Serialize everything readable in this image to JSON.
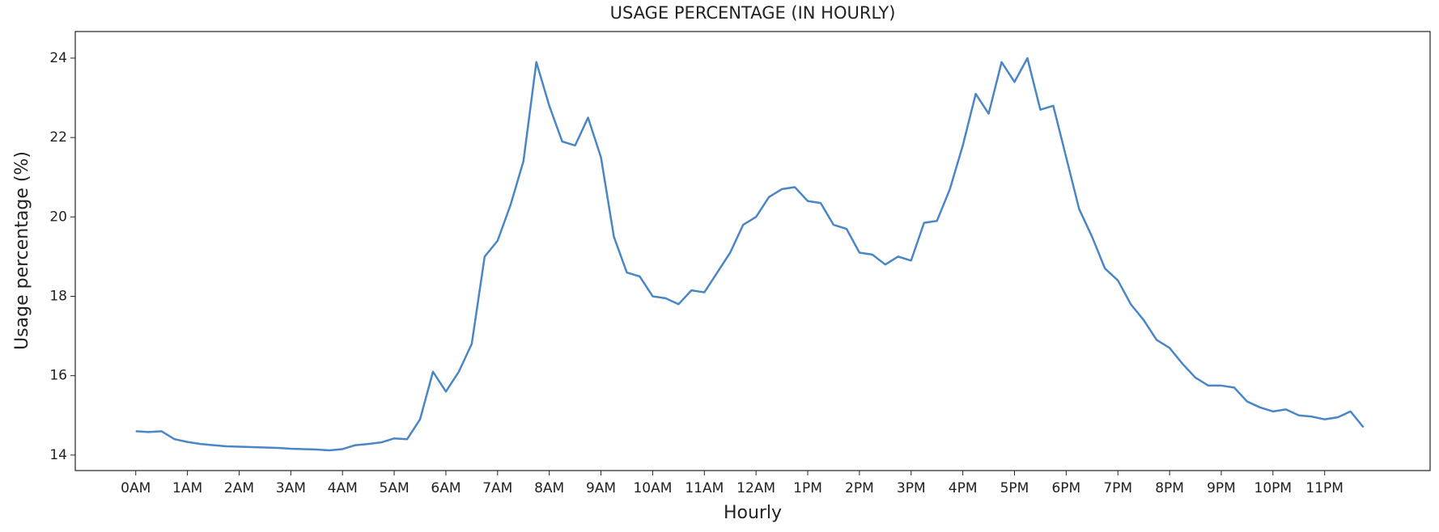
{
  "chart_data": {
    "type": "line",
    "title": "USAGE PERCENTAGE (IN HOURLY)",
    "x_label": "Hourly",
    "y_label": "Usage percentage (%)",
    "x": [
      0,
      0.25,
      0.5,
      0.75,
      1,
      1.25,
      1.5,
      1.75,
      2,
      2.25,
      2.5,
      2.75,
      3,
      3.25,
      3.5,
      3.75,
      4,
      4.25,
      4.5,
      4.75,
      5,
      5.25,
      5.5,
      5.75,
      6,
      6.25,
      6.5,
      6.75,
      7,
      7.25,
      7.5,
      7.75,
      8,
      8.25,
      8.5,
      8.75,
      9,
      9.25,
      9.5,
      9.75,
      10,
      10.25,
      10.5,
      10.75,
      11,
      11.25,
      11.5,
      11.75,
      12,
      12.25,
      12.5,
      12.75,
      13,
      13.25,
      13.5,
      13.75,
      14,
      14.25,
      14.5,
      14.75,
      15,
      15.25,
      15.5,
      15.75,
      16,
      16.25,
      16.5,
      16.75,
      17,
      17.25,
      17.5,
      17.75,
      18,
      18.25,
      18.5,
      18.75,
      19,
      19.25,
      19.5,
      19.75,
      20,
      20.25,
      20.5,
      20.75,
      21,
      21.25,
      21.5,
      21.75,
      22,
      22.25,
      22.5,
      22.75,
      23,
      23.25,
      23.5,
      23.75
    ],
    "series": [
      {
        "color": "#4a86c5",
        "values": [
          14.6,
          14.58,
          14.6,
          14.4,
          14.33,
          14.28,
          14.25,
          14.22,
          14.21,
          14.2,
          14.19,
          14.18,
          14.16,
          14.15,
          14.14,
          14.12,
          14.15,
          14.25,
          14.28,
          14.32,
          14.42,
          14.4,
          14.9,
          16.1,
          15.6,
          16.1,
          16.8,
          19,
          19.4,
          20.3,
          21.4,
          23.9,
          22.8,
          21.9,
          21.8,
          22.5,
          21.5,
          19.5,
          18.6,
          18.5,
          18,
          17.95,
          17.8,
          18.15,
          18.1,
          18.6,
          19.1,
          19.8,
          20,
          20.5,
          20.7,
          20.75,
          20.4,
          20.35,
          19.8,
          19.7,
          19.1,
          19.05,
          18.8,
          19,
          18.9,
          19.85,
          19.9,
          20.7,
          21.8,
          23.1,
          22.6,
          23.9,
          23.4,
          24,
          22.7,
          22.8,
          21.5,
          20.2,
          19.5,
          18.7,
          18.4,
          17.8,
          17.4,
          16.9,
          16.7,
          16.3,
          15.95,
          15.75,
          15.75,
          15.7,
          15.35,
          15.2,
          15.1,
          15.15,
          15,
          14.97,
          14.9,
          14.95,
          15.1,
          14.7
        ]
      }
    ],
    "xlim": [
      -1.17,
      25.04
    ],
    "ylim": [
      13.61,
      24.67
    ],
    "xticks": [
      {
        "value": 0,
        "label": "0AM"
      },
      {
        "value": 1,
        "label": "1AM"
      },
      {
        "value": 2,
        "label": "2AM"
      },
      {
        "value": 3,
        "label": "3AM"
      },
      {
        "value": 4,
        "label": "4AM"
      },
      {
        "value": 5,
        "label": "5AM"
      },
      {
        "value": 6,
        "label": "6AM"
      },
      {
        "value": 7,
        "label": "7AM"
      },
      {
        "value": 8,
        "label": "8AM"
      },
      {
        "value": 9,
        "label": "9AM"
      },
      {
        "value": 10,
        "label": "10AM"
      },
      {
        "value": 11,
        "label": "11AM"
      },
      {
        "value": 12,
        "label": "12AM"
      },
      {
        "value": 13,
        "label": "1PM"
      },
      {
        "value": 14,
        "label": "2PM"
      },
      {
        "value": 15,
        "label": "3PM"
      },
      {
        "value": 16,
        "label": "4PM"
      },
      {
        "value": 17,
        "label": "5PM"
      },
      {
        "value": 18,
        "label": "6PM"
      },
      {
        "value": 19,
        "label": "7PM"
      },
      {
        "value": 20,
        "label": "8PM"
      },
      {
        "value": 21,
        "label": "9PM"
      },
      {
        "value": 22,
        "label": "10PM"
      },
      {
        "value": 23,
        "label": "11PM"
      }
    ],
    "yticks": [
      14,
      16,
      18,
      20,
      22,
      24
    ],
    "grid": false
  }
}
